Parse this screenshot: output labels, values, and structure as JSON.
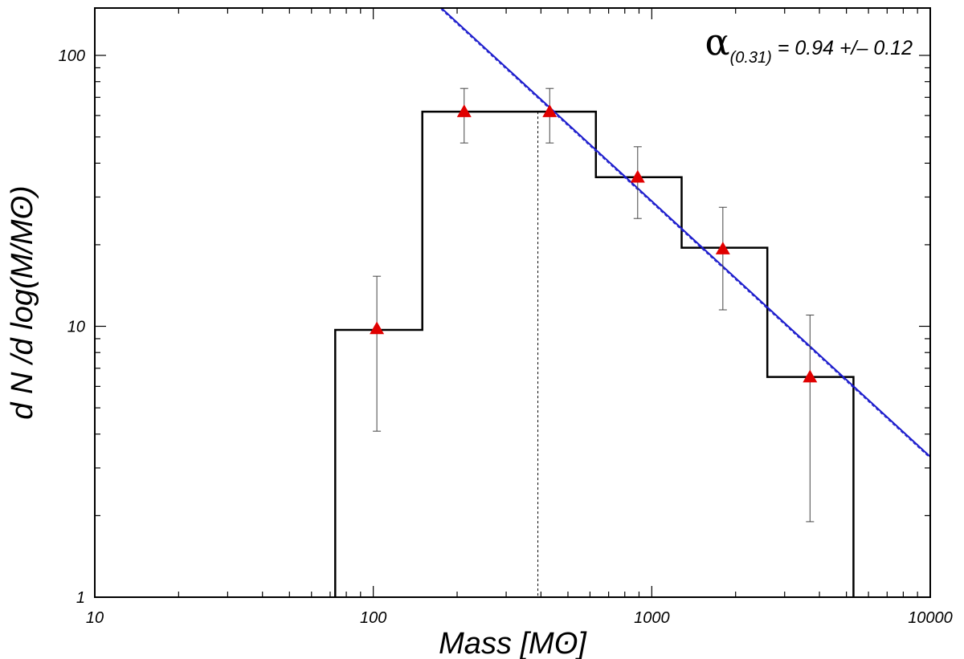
{
  "chart_data": {
    "type": "histogram-scatter",
    "xscale": "log",
    "yscale": "log",
    "xlim": [
      10,
      10000
    ],
    "ylim": [
      1,
      150
    ],
    "xlabel": "Mass [Mʘ]",
    "ylabel": "d N /d log(M/Mʘ)",
    "x_tick_labels": [
      {
        "value": 10,
        "label": "10"
      },
      {
        "value": 100,
        "label": "100"
      },
      {
        "value": 1000,
        "label": "1000"
      },
      {
        "value": 10000,
        "label": "10000"
      }
    ],
    "y_tick_labels": [
      {
        "value": 1,
        "label": "1"
      },
      {
        "value": 10,
        "label": "10"
      },
      {
        "value": 100,
        "label": "100"
      }
    ],
    "histogram": {
      "color": "#000000",
      "bins": [
        {
          "x0": 73,
          "x1": 150,
          "y": 9.7
        },
        {
          "x0": 150,
          "x1": 630,
          "y": 62
        },
        {
          "x0": 630,
          "x1": 1280,
          "y": 35.5
        },
        {
          "x0": 1280,
          "x1": 2600,
          "y": 19.5
        },
        {
          "x0": 2600,
          "x1": 5300,
          "y": 6.5
        }
      ]
    },
    "points": {
      "color": "#e00000",
      "marker": "triangle",
      "data": [
        {
          "x": 103,
          "y": 9.8,
          "ylo": 4.1,
          "yhi": 15.3
        },
        {
          "x": 212,
          "y": 62,
          "ylo": 47.5,
          "yhi": 75.5
        },
        {
          "x": 430,
          "y": 62,
          "ylo": 47.5,
          "yhi": 75.5
        },
        {
          "x": 890,
          "y": 35.5,
          "ylo": 25,
          "yhi": 46
        },
        {
          "x": 1800,
          "y": 19.3,
          "ylo": 11.5,
          "yhi": 27.5
        },
        {
          "x": 3700,
          "y": 6.5,
          "ylo": 1.9,
          "yhi": 11
        }
      ]
    },
    "fit_line": {
      "color": "#1a1acc",
      "slope": -0.94,
      "points": [
        {
          "x": 175,
          "y": 150
        },
        {
          "x": 10000,
          "y": 3.3
        }
      ]
    },
    "threshold_line": {
      "x": 390,
      "style": "dashed"
    },
    "annotation": {
      "symbol": "α",
      "subscript": "(0.31)",
      "text": " = 0.94 +/– 0.12"
    }
  }
}
